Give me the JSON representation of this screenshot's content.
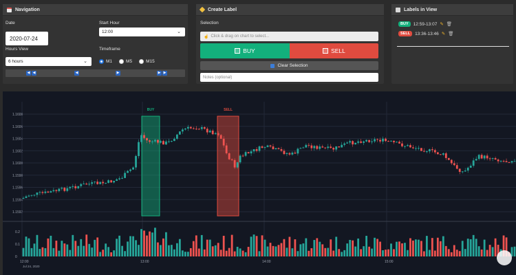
{
  "navigation": {
    "title": "Navigation",
    "date_label": "Date",
    "date_value": "2020-07-24",
    "start_hour_label": "Start Hour",
    "start_hour_value": "12:00",
    "hours_view_label": "Hours View",
    "hours_view_value": "6 hours",
    "timeframe_label": "Timeframe",
    "timeframes": [
      "M1",
      "M5",
      "M15"
    ],
    "selected_timeframe": "M1"
  },
  "create_label": {
    "title": "Create Label",
    "selection_label": "Selection",
    "selection_placeholder": "Click & drag on chart to select...",
    "buy_label": "BUY",
    "sell_label": "SELL",
    "clear_label": "Clear Selection",
    "notes_placeholder": "Notes (optional)"
  },
  "labels_in_view": {
    "title": "Labels in View",
    "items": [
      {
        "type": "BUY",
        "range": "12:59-13:07"
      },
      {
        "type": "SELL",
        "range": "13:36-13:46"
      }
    ]
  },
  "colors": {
    "buy": "#13b07c",
    "sell": "#e04b3f",
    "up": "#26a69a",
    "down": "#ef5350"
  },
  "chart_data": {
    "type": "candlestick",
    "y_ticks": [
      "1.1608",
      "1.1606",
      "1.1604",
      "1.1602",
      "1.1600",
      "1.1598",
      "1.1596",
      "1.1594",
      "1.1592"
    ],
    "volume_ticks": [
      "0.2",
      "0.1",
      "0"
    ],
    "x_ticks": [
      "12:00",
      "13:00",
      "14:00",
      "15:00"
    ],
    "date_label": "Jul 24, 2020",
    "annotations": [
      {
        "label": "BUY",
        "from": "12:59",
        "to": "13:07"
      },
      {
        "label": "SELL",
        "from": "13:36",
        "to": "13:46"
      }
    ]
  }
}
